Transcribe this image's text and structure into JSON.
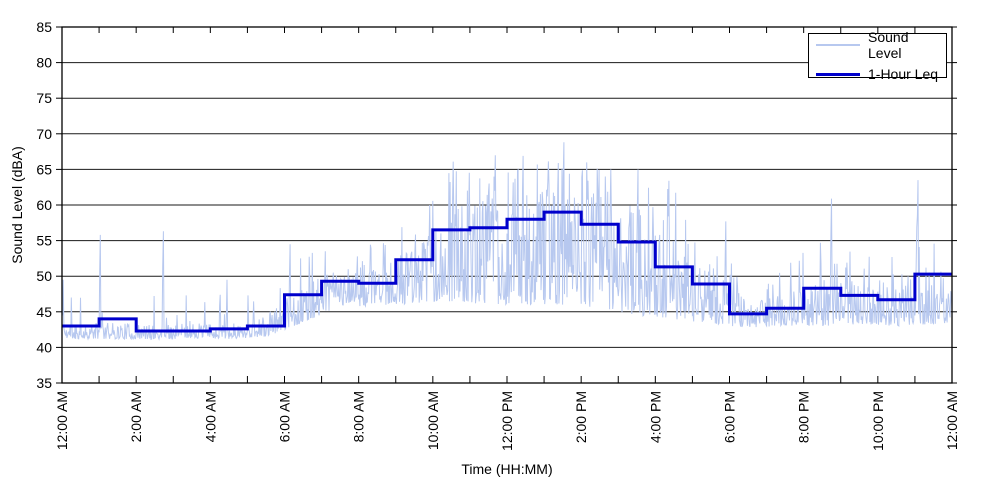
{
  "chart_data": {
    "type": "line",
    "xlabel": "Time (HH:MM)",
    "ylabel": "Sound Level (dBA)",
    "ylim": [
      35,
      85
    ],
    "xlim_hours": [
      0,
      24
    ],
    "y_ticks": [
      35,
      40,
      45,
      50,
      55,
      60,
      65,
      70,
      75,
      80,
      85
    ],
    "x_tick_labels": [
      "12:00 AM",
      "2:00 AM",
      "4:00 AM",
      "6:00 AM",
      "8:00 AM",
      "10:00 AM",
      "12:00 PM",
      "2:00 PM",
      "4:00 PM",
      "6:00 PM",
      "8:00 PM",
      "10:00 PM",
      "12:00 AM"
    ],
    "x_tick_step_hours": 2,
    "x_minor_tick_hours": 1,
    "grid": "horizontal-only",
    "grid_color": "#1a1a1a",
    "legend": {
      "position": "top-right",
      "items": [
        {
          "label": "Sound Level",
          "color": "#b7c8ef",
          "weight": "thin"
        },
        {
          "label": "1-Hour Leq",
          "color": "#0000cc",
          "weight": "thick"
        }
      ]
    },
    "series": [
      {
        "name": "Sound Level",
        "render": "noisy-minute-line",
        "color": "#b7c8ef",
        "stroke_width": 1,
        "synthesis": {
          "seed": 11,
          "points_per_hour": 60,
          "floor_dba": [
            41.2,
            41.2,
            41.1,
            41.3,
            41.2,
            41.5,
            43.5,
            45.8,
            45.8,
            46.2,
            46.5,
            46.0,
            46.0,
            46.0,
            45.5,
            44.5,
            44.0,
            43.2,
            42.8,
            43.0,
            43.0,
            43.3,
            43.0,
            43.3
          ],
          "band_top_dba": [
            43.5,
            43.5,
            43.2,
            43.5,
            43.3,
            44.5,
            49.0,
            51.0,
            51.0,
            54.0,
            60.0,
            61.0,
            62.0,
            63.0,
            61.5,
            59.0,
            55.5,
            52.0,
            46.5,
            47.5,
            49.5,
            49.5,
            48.5,
            48.0
          ],
          "spike_top_dba": [
            48.5,
            48.0,
            47.5,
            48.0,
            48.5,
            49.0,
            53.0,
            54.5,
            54.5,
            58.5,
            65.0,
            66.0,
            66.5,
            67.0,
            65.5,
            64.0,
            62.0,
            56.5,
            50.0,
            52.0,
            55.0,
            54.0,
            53.0,
            55.0
          ],
          "spike_prob": [
            0.06,
            0.06,
            0.05,
            0.06,
            0.05,
            0.07,
            0.1,
            0.1,
            0.1,
            0.12,
            0.15,
            0.15,
            0.15,
            0.15,
            0.15,
            0.13,
            0.11,
            0.1,
            0.08,
            0.08,
            0.09,
            0.09,
            0.08,
            0.09
          ],
          "value_min": 40.6,
          "value_max": 68.8
        },
        "notable_spikes": [
          [
            0.0,
            48.9
          ],
          [
            0.03,
            49.5
          ],
          [
            1.03,
            55.8
          ],
          [
            2.73,
            56.3
          ],
          [
            4.45,
            49.5
          ],
          [
            6.15,
            54.5
          ],
          [
            9.92,
            60.0
          ],
          [
            10.55,
            66.1
          ],
          [
            11.68,
            67.0
          ],
          [
            12.44,
            66.9
          ],
          [
            13.53,
            68.8
          ],
          [
            14.8,
            65.0
          ],
          [
            15.54,
            65.0
          ],
          [
            16.37,
            63.4
          ],
          [
            17.9,
            57.7
          ],
          [
            20.75,
            60.9
          ],
          [
            23.05,
            56.9
          ],
          [
            23.09,
            63.5
          ]
        ]
      },
      {
        "name": "1-Hour Leq",
        "render": "hourly-step",
        "color": "#0000cc",
        "stroke_width": 3,
        "hourly_leq_dba": [
          43.0,
          44.0,
          42.3,
          42.3,
          42.6,
          43.0,
          47.4,
          49.3,
          49.0,
          52.3,
          56.5,
          56.8,
          58.0,
          59.0,
          57.3,
          54.8,
          51.3,
          48.9,
          44.7,
          45.5,
          48.3,
          47.3,
          46.7,
          50.3
        ]
      }
    ]
  }
}
